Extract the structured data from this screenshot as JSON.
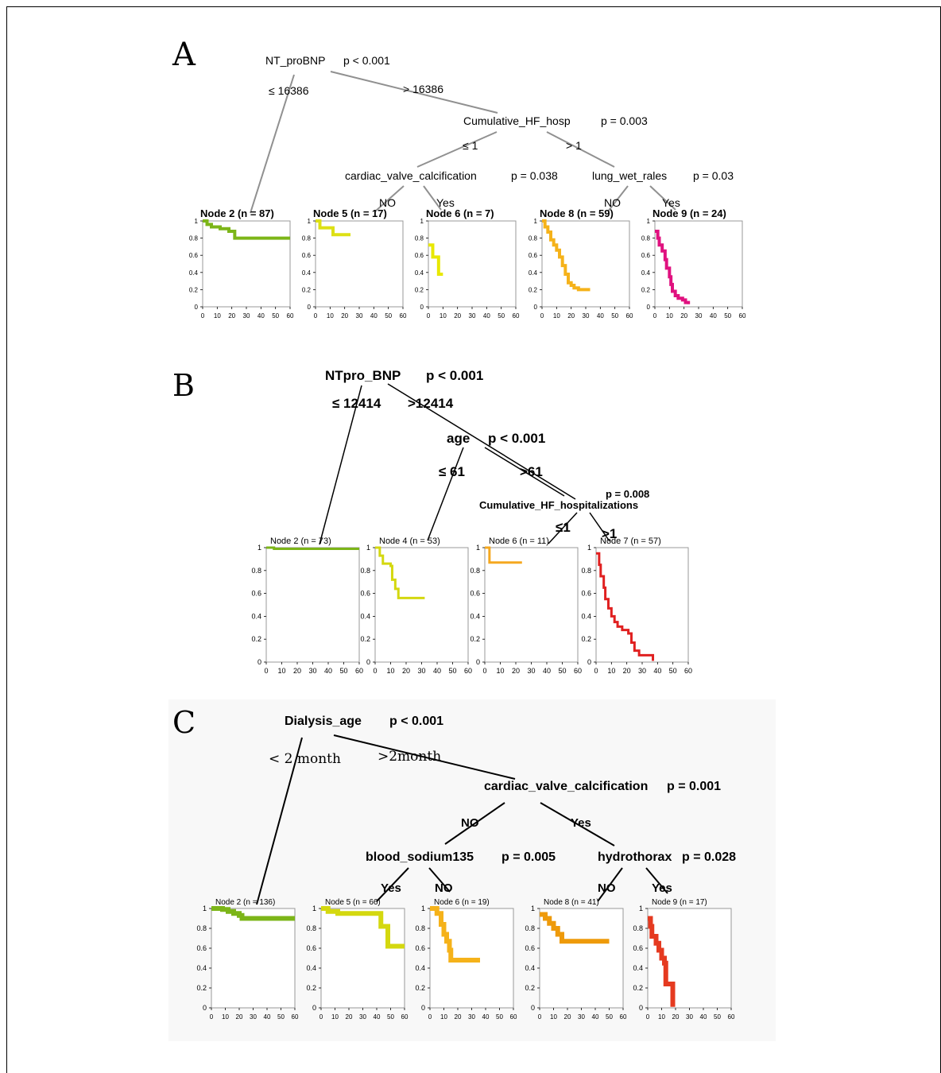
{
  "panels": [
    {
      "letter": "A",
      "root": {
        "label": "NT_proBNP",
        "p": "p < 0.001"
      },
      "edges": [
        "≤ 16386",
        "> 16386",
        "≤ 1",
        "> 1",
        "NO",
        "Yes",
        "NO",
        "Yes"
      ],
      "inner": [
        {
          "label": "Cumulative_HF_hosp",
          "p": "p = 0.003"
        },
        {
          "label": "cardiac_valve_calcification",
          "p": "p = 0.038"
        },
        {
          "label": "lung_wet_rales",
          "p": "p = 0.03"
        }
      ],
      "nodes": [
        {
          "title": "Node 2 (n = 87)",
          "color": "#7cb518",
          "curve": [
            [
              0,
              1
            ],
            [
              3,
              0.96
            ],
            [
              6,
              0.93
            ],
            [
              12,
              0.91
            ],
            [
              18,
              0.88
            ],
            [
              22,
              0.8
            ],
            [
              60,
              0.8
            ]
          ]
        },
        {
          "title": "Node 5 (n = 17)",
          "color": "#dde014",
          "curve": [
            [
              0,
              1
            ],
            [
              3,
              0.92
            ],
            [
              12,
              0.84
            ],
            [
              24,
              0.84
            ]
          ]
        },
        {
          "title": "Node 6 (n = 7)",
          "color": "#e8e800",
          "curve": [
            [
              0,
              0.72
            ],
            [
              3,
              0.58
            ],
            [
              7,
              0.38
            ],
            [
              10,
              0.38
            ]
          ]
        },
        {
          "title": "Node 8 (n = 59)",
          "color": "#f5b21a",
          "curve": [
            [
              0,
              1
            ],
            [
              2,
              0.93
            ],
            [
              4,
              0.87
            ],
            [
              6,
              0.78
            ],
            [
              8,
              0.72
            ],
            [
              10,
              0.66
            ],
            [
              12,
              0.58
            ],
            [
              14,
              0.48
            ],
            [
              16,
              0.38
            ],
            [
              18,
              0.28
            ],
            [
              20,
              0.25
            ],
            [
              22,
              0.22
            ],
            [
              25,
              0.2
            ],
            [
              33,
              0.2
            ]
          ]
        },
        {
          "title": "Node 9 (n = 24)",
          "color": "#e0117f",
          "curve": [
            [
              0,
              0.88
            ],
            [
              2,
              0.8
            ],
            [
              3,
              0.72
            ],
            [
              5,
              0.65
            ],
            [
              7,
              0.55
            ],
            [
              8,
              0.45
            ],
            [
              10,
              0.35
            ],
            [
              11,
              0.26
            ],
            [
              12,
              0.18
            ],
            [
              14,
              0.13
            ],
            [
              16,
              0.1
            ],
            [
              19,
              0.08
            ],
            [
              21,
              0.05
            ],
            [
              23,
              0.03
            ]
          ]
        }
      ],
      "tick_x": [
        "0",
        "10",
        "20",
        "30",
        "40",
        "50",
        "60"
      ],
      "tick_y": [
        "0",
        "0.2",
        "0.4",
        "0.6",
        "0.8",
        "1"
      ]
    },
    {
      "letter": "B",
      "root": {
        "label": "NTpro_BNP",
        "p": "p < 0.001"
      },
      "edges": [
        "≤ 12414",
        ">12414",
        "≤ 61",
        ">61",
        "≤1",
        ">1"
      ],
      "inner": [
        {
          "label": "age",
          "p": "p < 0.001"
        },
        {
          "label": "Cumulative_HF_hospitalizations",
          "p": "p = 0.008"
        }
      ],
      "nodes": [
        {
          "title": "Node 2 (n = 73)",
          "color": "#7cb518",
          "curve": [
            [
              0,
              1
            ],
            [
              5,
              0.99
            ],
            [
              60,
              0.99
            ]
          ]
        },
        {
          "title": "Node 4 (n = 53)",
          "color": "#d4d80f",
          "curve": [
            [
              0,
              1
            ],
            [
              3,
              0.93
            ],
            [
              5,
              0.86
            ],
            [
              10,
              0.84
            ],
            [
              11,
              0.72
            ],
            [
              13,
              0.64
            ],
            [
              15,
              0.56
            ],
            [
              32,
              0.56
            ]
          ]
        },
        {
          "title": "Node 6 (n = 11)",
          "color": "#f5a820",
          "curve": [
            [
              0,
              1
            ],
            [
              3,
              0.87
            ],
            [
              24,
              0.87
            ]
          ]
        },
        {
          "title": "Node 7 (n = 57)",
          "color": "#e02020",
          "curve": [
            [
              0,
              0.95
            ],
            [
              2,
              0.85
            ],
            [
              3,
              0.75
            ],
            [
              5,
              0.65
            ],
            [
              6,
              0.55
            ],
            [
              8,
              0.47
            ],
            [
              10,
              0.4
            ],
            [
              12,
              0.35
            ],
            [
              14,
              0.31
            ],
            [
              17,
              0.28
            ],
            [
              21,
              0.25
            ],
            [
              23,
              0.17
            ],
            [
              25,
              0.1
            ],
            [
              28,
              0.06
            ],
            [
              37,
              0.06
            ],
            [
              37,
              0.01
            ]
          ]
        }
      ],
      "tick_x": [
        "0",
        "10",
        "20",
        "30",
        "40",
        "50",
        "60"
      ],
      "tick_y": [
        "0",
        "0.2",
        "0.4",
        "0.6",
        "0.8",
        "1"
      ]
    },
    {
      "letter": "C",
      "root": {
        "label": "Dialysis_age",
        "p": "p < 0.001"
      },
      "edges": [
        "< 2 month",
        ">2month",
        "NO",
        "Yes",
        "Yes",
        "NO",
        "NO",
        "Yes"
      ],
      "inner": [
        {
          "label": "cardiac_valve_calcification",
          "p": "p = 0.001"
        },
        {
          "label": "blood_sodium135",
          "p": "p = 0.005"
        },
        {
          "label": "hydrothorax",
          "p": "p = 0.028"
        }
      ],
      "nodes": [
        {
          "title": "Node 2 (n = 136)",
          "color": "#7cb518",
          "curve": [
            [
              0,
              1
            ],
            [
              8,
              0.99
            ],
            [
              12,
              0.97
            ],
            [
              16,
              0.95
            ],
            [
              20,
              0.93
            ],
            [
              22,
              0.9
            ],
            [
              60,
              0.9
            ]
          ]
        },
        {
          "title": "Node 5 (n = 66)",
          "color": "#d4d80f",
          "curve": [
            [
              0,
              1
            ],
            [
              5,
              0.97
            ],
            [
              12,
              0.95
            ],
            [
              40,
              0.95
            ],
            [
              43,
              0.82
            ],
            [
              47,
              0.82
            ],
            [
              48,
              0.62
            ],
            [
              60,
              0.62
            ]
          ]
        },
        {
          "title": "Node 6 (n = 19)",
          "color": "#f5b21a",
          "curve": [
            [
              0,
              1
            ],
            [
              5,
              0.95
            ],
            [
              8,
              0.84
            ],
            [
              10,
              0.74
            ],
            [
              12,
              0.67
            ],
            [
              14,
              0.58
            ],
            [
              15,
              0.48
            ],
            [
              36,
              0.48
            ]
          ]
        },
        {
          "title": "Node 8 (n = 41)",
          "color": "#ee9a0a",
          "curve": [
            [
              0,
              0.94
            ],
            [
              4,
              0.9
            ],
            [
              7,
              0.85
            ],
            [
              10,
              0.8
            ],
            [
              13,
              0.74
            ],
            [
              16,
              0.67
            ],
            [
              50,
              0.67
            ]
          ]
        },
        {
          "title": "Node 9 (n = 17)",
          "color": "#e53a20",
          "curve": [
            [
              0,
              0.9
            ],
            [
              2,
              0.82
            ],
            [
              3,
              0.72
            ],
            [
              6,
              0.65
            ],
            [
              8,
              0.58
            ],
            [
              10,
              0.5
            ],
            [
              12,
              0.45
            ],
            [
              13,
              0.24
            ],
            [
              18,
              0.24
            ],
            [
              18,
              0.01
            ]
          ]
        }
      ],
      "tick_x": [
        "0",
        "10",
        "20",
        "30",
        "40",
        "50",
        "60"
      ],
      "tick_y": [
        "0",
        "0.2",
        "0.4",
        "0.6",
        "0.8",
        "1"
      ]
    }
  ]
}
